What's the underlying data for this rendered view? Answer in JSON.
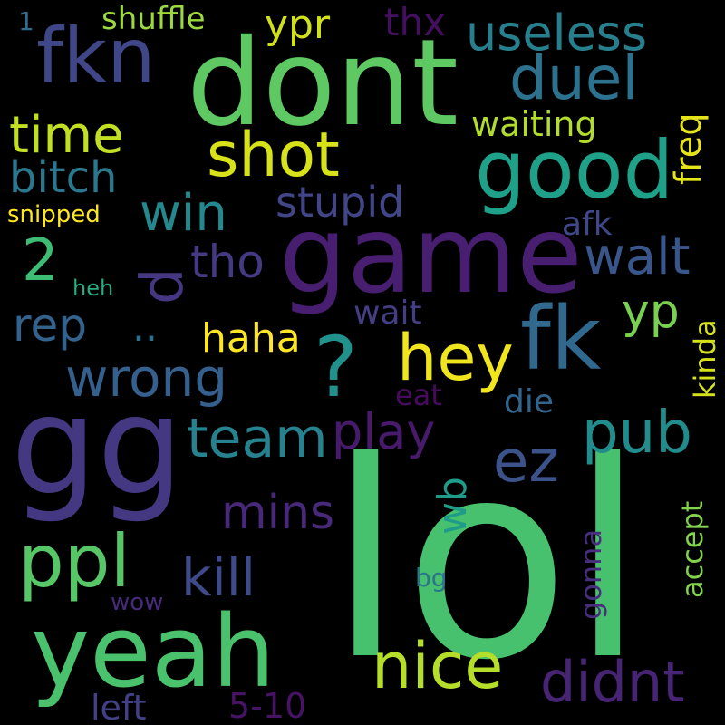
{
  "word_cloud": {
    "background": "#000000",
    "words": {
      "lol": {
        "text": "lol",
        "color": "#48c16e"
      },
      "gg": {
        "text": "gg",
        "color": "#453882"
      },
      "dont": {
        "text": "dont",
        "color": "#5ec962"
      },
      "game": {
        "text": "game",
        "color": "#481f70"
      },
      "yeah": {
        "text": "yeah",
        "color": "#4ac16d"
      },
      "fkn": {
        "text": "fkn",
        "color": "#3f4788"
      },
      "fk": {
        "text": "fk",
        "color": "#31688e"
      },
      "good": {
        "text": "good",
        "color": "#1fa088"
      },
      "ppl": {
        "text": "ppl",
        "color": "#56c667"
      },
      "nice": {
        "text": "nice",
        "color": "#b5de2b"
      },
      "shot": {
        "text": "shot",
        "color": "#d8e219"
      },
      "hey": {
        "text": "hey",
        "color": "#f1e51d"
      },
      "question": {
        "text": "?",
        "color": "#21918c"
      },
      "duel": {
        "text": "duel",
        "color": "#2c728e"
      },
      "ez": {
        "text": "ez",
        "color": "#3b528b"
      },
      "pub": {
        "text": "pub",
        "color": "#228c8d"
      },
      "didnt": {
        "text": "didnt",
        "color": "#482475"
      },
      "team": {
        "text": "team",
        "color": "#26828e"
      },
      "wrong": {
        "text": "wrong",
        "color": "#355f8d"
      },
      "kill": {
        "text": "kill",
        "color": "#3e4a89"
      },
      "win": {
        "text": "win",
        "color": "#23898e"
      },
      "walt": {
        "text": "walt",
        "color": "#39568c"
      },
      "useless": {
        "text": "useless",
        "color": "#277f8e"
      },
      "time": {
        "text": "time",
        "color": "#c2df23"
      },
      "bitch": {
        "text": "bitch",
        "color": "#2a788e"
      },
      "mins": {
        "text": "mins",
        "color": "#482878"
      },
      "two": {
        "text": "2",
        "color": "#3dbc74"
      },
      "d": {
        "text": "d",
        "color": "#453781"
      },
      "tho": {
        "text": "tho",
        "color": "#443983"
      },
      "play": {
        "text": "play",
        "color": "#481a6c"
      },
      "rep": {
        "text": "rep",
        "color": "#33638d"
      },
      "stupid": {
        "text": "stupid",
        "color": "#404688"
      },
      "yp": {
        "text": "yp",
        "color": "#7ad151"
      },
      "dots": {
        "text": "..",
        "color": "#2d708e"
      },
      "haha": {
        "text": "haha",
        "color": "#fde725"
      },
      "ypr": {
        "text": "ypr",
        "color": "#d0e11c"
      },
      "shuffle": {
        "text": "shuffle",
        "color": "#9bd93c"
      },
      "thx": {
        "text": "thx",
        "color": "#440f5f"
      },
      "waiting": {
        "text": "waiting",
        "color": "#b2dd2d"
      },
      "freq": {
        "text": "freq",
        "color": "#e5e419"
      },
      "afk": {
        "text": "afk",
        "color": "#3f4889"
      },
      "wait": {
        "text": "wait",
        "color": "#433e85"
      },
      "die": {
        "text": "die",
        "color": "#32658e"
      },
      "eat": {
        "text": "eat",
        "color": "#460b5e"
      },
      "kinda": {
        "text": "kinda",
        "color": "#d5e21a"
      },
      "wb": {
        "text": "wb",
        "color": "#1e9c89"
      },
      "gonna": {
        "text": "gonna",
        "color": "#472f7d"
      },
      "accept": {
        "text": "accept",
        "color": "#84d44b"
      },
      "snipped": {
        "text": "snipped",
        "color": "#fde725"
      },
      "heh": {
        "text": "heh",
        "color": "#25ac82"
      },
      "one": {
        "text": "1",
        "color": "#306a8e"
      },
      "left": {
        "text": "left",
        "color": "#424086"
      },
      "range": {
        "text": "5-10",
        "color": "#471365"
      },
      "wow": {
        "text": "wow",
        "color": "#472a7a"
      },
      "bg": {
        "text": "bg",
        "color": "#2b748e"
      }
    }
  }
}
